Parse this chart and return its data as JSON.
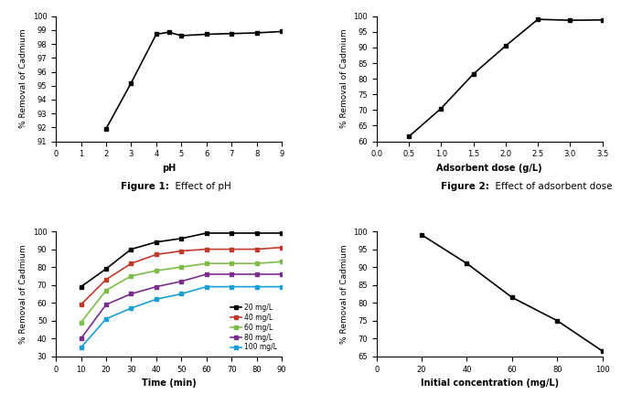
{
  "fig1": {
    "x": [
      2,
      3,
      4,
      4.5,
      5,
      6,
      7,
      8,
      9
    ],
    "y": [
      91.9,
      95.2,
      98.7,
      98.85,
      98.6,
      98.7,
      98.75,
      98.8,
      98.9
    ],
    "xlabel": "pH",
    "ylabel": "% Removal of Cadmium",
    "xlim": [
      0,
      9
    ],
    "ylim": [
      91,
      100
    ],
    "xticks": [
      0,
      1,
      2,
      3,
      4,
      5,
      6,
      7,
      8,
      9
    ],
    "yticks": [
      91,
      92,
      93,
      94,
      95,
      96,
      97,
      98,
      99,
      100
    ],
    "caption_bold": "Figure 1:",
    "caption_normal": "  Effect of pH"
  },
  "fig2": {
    "x": [
      0.5,
      1.0,
      1.5,
      2.0,
      2.5,
      3.0,
      3.5
    ],
    "y": [
      61.5,
      70.5,
      81.5,
      90.5,
      99.0,
      98.7,
      98.8
    ],
    "xlabel": "Adsorbent dose (g/L)",
    "ylabel": "% Removal of Cadmium",
    "xlim": [
      0,
      3.5
    ],
    "ylim": [
      60,
      100
    ],
    "xticks": [
      0,
      0.5,
      1.0,
      1.5,
      2.0,
      2.5,
      3.0,
      3.5
    ],
    "yticks": [
      60,
      65,
      70,
      75,
      80,
      85,
      90,
      95,
      100
    ],
    "caption_bold": "Figure 2:",
    "caption_normal": "  Effect of adsorbent dose"
  },
  "fig3": {
    "time": [
      10,
      20,
      30,
      40,
      50,
      60,
      70,
      80,
      90
    ],
    "series": {
      "20 mg/L": {
        "y": [
          69,
          79,
          90,
          94,
          96,
          99,
          99,
          99,
          99
        ],
        "color": "#000000",
        "marker": "s"
      },
      "40 mg/L": {
        "y": [
          59,
          73,
          82,
          87,
          89,
          90,
          90,
          90,
          91
        ],
        "color": "#c0392b",
        "marker": "s"
      },
      "60 mg/L": {
        "y": [
          49,
          67,
          75,
          78,
          80,
          82,
          82,
          82,
          83
        ],
        "color": "#7dbb4a",
        "marker": "s"
      },
      "80 mg/L": {
        "y": [
          40,
          59,
          65,
          69,
          72,
          76,
          76,
          76,
          76
        ],
        "color": "#7b2d8b",
        "marker": "s"
      },
      "100 mg/L": {
        "y": [
          35,
          51,
          57,
          62,
          65,
          69,
          69,
          69,
          69
        ],
        "color": "#1a9fd4",
        "marker": "s"
      }
    },
    "xlabel": "Time (min)",
    "ylabel": "% Removal of Cadmium",
    "xlim": [
      0,
      90
    ],
    "ylim": [
      30,
      100
    ],
    "xticks": [
      0,
      10,
      20,
      30,
      40,
      50,
      60,
      70,
      80,
      90
    ],
    "yticks": [
      30,
      40,
      50,
      60,
      70,
      80,
      90,
      100
    ]
  },
  "fig4": {
    "x": [
      20,
      40,
      60,
      80,
      100
    ],
    "y": [
      99.0,
      91.0,
      81.5,
      75.0,
      66.5
    ],
    "xlabel": "Initial concentration (mg/L)",
    "ylabel": "% Removal of Cadmium",
    "xlim": [
      0,
      100
    ],
    "ylim": [
      65,
      100
    ],
    "xticks": [
      0,
      20,
      40,
      60,
      80,
      100
    ],
    "yticks": [
      65,
      70,
      75,
      80,
      85,
      90,
      95,
      100
    ]
  }
}
